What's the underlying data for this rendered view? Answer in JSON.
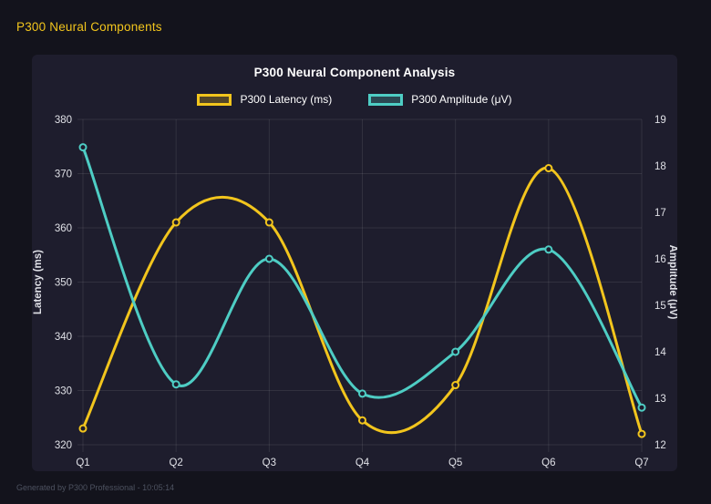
{
  "page": {
    "title": "P300 Neural Components",
    "footer": "Generated by P300 Professional - 10:05:14"
  },
  "colors": {
    "background": "#13131c",
    "panel": "#1e1d2d",
    "yellow": "#f2c51d",
    "teal": "#4ecdc4",
    "grid": "rgba(255,255,255,0.09)",
    "tick_text": "#dfe0e6",
    "title_text": "#ffffff",
    "footer_text": "#4d5260"
  },
  "chart_data": {
    "type": "line",
    "title": "P300 Neural Component Analysis",
    "categories": [
      "Q1",
      "Q2",
      "Q3",
      "Q4",
      "Q5",
      "Q6",
      "Q7"
    ],
    "series": [
      {
        "name": "P300 Latency (ms)",
        "axis": "left",
        "color": "#f2c51d",
        "values": [
          323,
          361,
          361,
          324.5,
          331,
          371,
          322
        ]
      },
      {
        "name": "P300 Amplitude (μV)",
        "axis": "right",
        "color": "#4ecdc4",
        "values": [
          18.4,
          13.3,
          16.0,
          13.1,
          14.0,
          16.2,
          12.8
        ]
      }
    ],
    "left_axis": {
      "label": "Latency (ms)",
      "min": 320,
      "max": 380,
      "ticks": [
        380,
        370,
        360,
        350,
        340,
        330,
        320
      ]
    },
    "right_axis": {
      "label": "Amplitude (μV)",
      "min": 12,
      "max": 19,
      "ticks": [
        19,
        18,
        17,
        16,
        15,
        14,
        13,
        12
      ]
    },
    "grid": true,
    "legend_position": "top",
    "curve": "smooth"
  }
}
